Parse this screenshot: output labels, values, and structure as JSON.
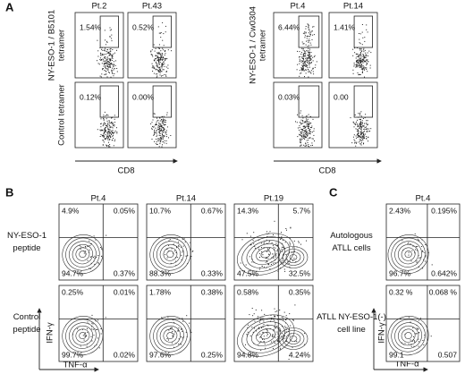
{
  "panel_a": {
    "label": "A",
    "x_axis_label": "CD8",
    "groups": [
      {
        "columns": [
          "Pt.2",
          "Pt.43"
        ],
        "row_labels": [
          [
            "NY-ESO-1 / B5101",
            "tetramer"
          ],
          [
            "Control tetramer"
          ]
        ],
        "percentages": [
          [
            "1.54%",
            "0.52%"
          ],
          [
            "0.12%",
            "0.00%"
          ]
        ]
      },
      {
        "columns": [
          "Pt.4",
          "Pt.14"
        ],
        "row_labels": [
          [
            "NY-ESO-1 / Cw0304",
            "tetramer"
          ]
        ],
        "percentages": [
          [
            "6.44%",
            "1.41%"
          ],
          [
            "0.03%",
            "0.00"
          ]
        ]
      }
    ]
  },
  "panel_b": {
    "label": "B",
    "y_axis_label": "IFN-γ",
    "x_axis_label": "TNF-α",
    "columns": [
      "Pt.4",
      "Pt.14",
      "Pt.19"
    ],
    "row_labels": [
      [
        "NY-ESO-1",
        "peptide"
      ],
      [
        "Control",
        "peptide"
      ]
    ],
    "quadrants": [
      [
        [
          "4.9%",
          "0.05%",
          "94.7%",
          "0.37%"
        ],
        [
          "10.7%",
          "0.67%",
          "88.3%",
          "0.33%"
        ],
        [
          "14.3%",
          "5.7%",
          "47.5%",
          "32.5%"
        ]
      ],
      [
        [
          "0.25%",
          "0.01%",
          "99.7%",
          "0.02%"
        ],
        [
          "1.78%",
          "0.38%",
          "97.6%",
          "0.25%"
        ],
        [
          "0.58%",
          "0.35%",
          "94.8%",
          "4.24%"
        ]
      ]
    ]
  },
  "panel_c": {
    "label": "C",
    "y_axis_label": "IFN-γ",
    "x_axis_label": "TNF-α",
    "columns": [
      "Pt.4"
    ],
    "row_labels": [
      [
        "Autologous",
        "ATLL cells"
      ],
      [
        "ATLL NY-ESO-1(-)",
        "cell line"
      ]
    ],
    "quadrants": [
      [
        [
          "2.43%",
          "0.195%",
          "96.7%",
          "0.642%"
        ]
      ],
      [
        [
          "0.32 %",
          "0.068 %",
          "99.1",
          "0.507"
        ]
      ]
    ]
  }
}
